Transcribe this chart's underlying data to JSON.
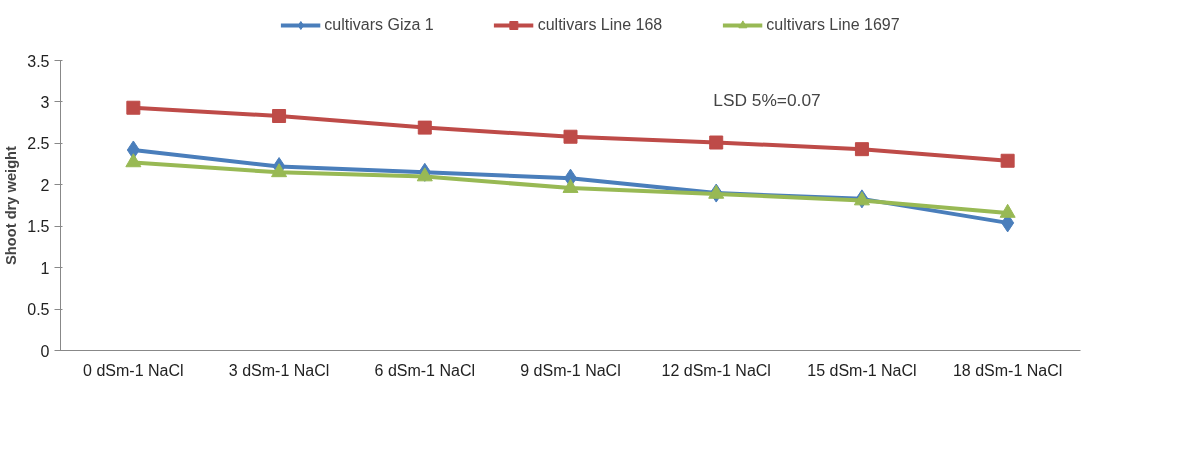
{
  "chart_data": {
    "type": "line",
    "ylabel": "Shoot dry weight",
    "categories": [
      "0 dSm-1 NaCl",
      "3 dSm-1 NaCl",
      "6 dSm-1 NaCl",
      "9 dSm-1 NaCl",
      "12 dSm-1 NaCl",
      "15 dSm-1 NaCl",
      "18 dSm-1 NaCl"
    ],
    "series": [
      {
        "name": "cultivars Giza 1",
        "color": "#4a7ebb",
        "marker": "diamond",
        "values": [
          2.42,
          2.22,
          2.15,
          2.08,
          1.9,
          1.83,
          1.54
        ]
      },
      {
        "name": "cultivars Line 168",
        "color": "#be4b48",
        "marker": "square",
        "values": [
          2.93,
          2.83,
          2.69,
          2.58,
          2.51,
          2.43,
          2.29
        ]
      },
      {
        "name": "cultivars Line 1697",
        "color": "#98b954",
        "marker": "triangle",
        "values": [
          2.27,
          2.15,
          2.1,
          1.96,
          1.89,
          1.81,
          1.66
        ]
      }
    ],
    "ylim": [
      0,
      3.5
    ],
    "yticks": [
      0,
      0.5,
      1,
      1.5,
      2,
      2.5,
      3,
      3.5
    ],
    "annotations": [
      "LSD 5%=0.07"
    ],
    "legend": "top",
    "grid": false
  }
}
